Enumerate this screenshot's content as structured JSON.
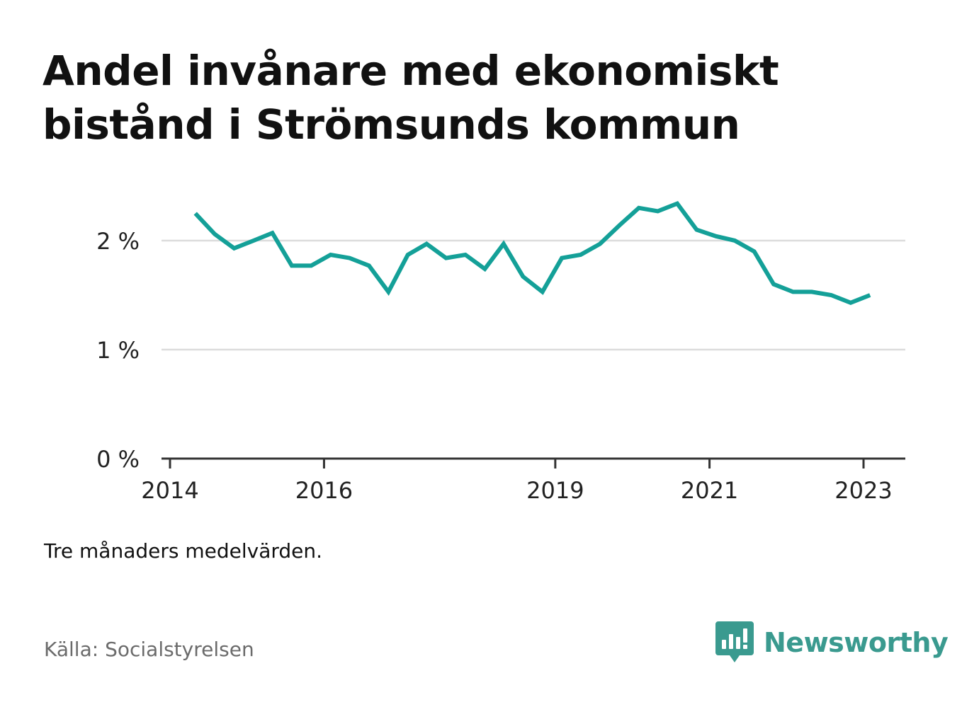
{
  "title": "Andel invånare med ekonomiskt bistånd i Strömsunds kommun",
  "note": "Tre månaders medelvärden.",
  "source": "Källa: Socialstyrelsen",
  "brand": {
    "name": "Newsworthy",
    "icon": "newsworthy-logo-icon",
    "color": "#3a9a8f"
  },
  "chart_data": {
    "type": "line",
    "title": "Andel invånare med ekonomiskt bistånd i Strömsunds kommun",
    "xlabel": "",
    "ylabel": "",
    "ylim": [
      0,
      2.5
    ],
    "xlim": [
      "2014-01-01",
      "2023-07-01"
    ],
    "grid": true,
    "line_color": "#14a098",
    "x_ticks": [
      {
        "label": "2014",
        "date": "2014-01-01"
      },
      {
        "label": "2016",
        "date": "2016-01-01"
      },
      {
        "label": "2019",
        "date": "2019-01-01"
      },
      {
        "label": "2021",
        "date": "2021-01-01"
      },
      {
        "label": "2023",
        "date": "2023-01-01"
      }
    ],
    "y_ticks": [
      {
        "label": "0 %",
        "value": 0
      },
      {
        "label": "1 %",
        "value": 1
      },
      {
        "label": "2 %",
        "value": 2
      }
    ],
    "series": [
      {
        "values": [
          {
            "x": "2014-05-01",
            "y": 2.25
          },
          {
            "x": "2014-08-01",
            "y": 2.06
          },
          {
            "x": "2014-11-01",
            "y": 1.93
          },
          {
            "x": "2015-02-01",
            "y": 2.0
          },
          {
            "x": "2015-05-01",
            "y": 2.07
          },
          {
            "x": "2015-08-01",
            "y": 1.77
          },
          {
            "x": "2015-11-01",
            "y": 1.77
          },
          {
            "x": "2016-02-01",
            "y": 1.87
          },
          {
            "x": "2016-05-01",
            "y": 1.84
          },
          {
            "x": "2016-08-01",
            "y": 1.77
          },
          {
            "x": "2016-11-01",
            "y": 1.53
          },
          {
            "x": "2017-02-01",
            "y": 1.87
          },
          {
            "x": "2017-05-01",
            "y": 1.97
          },
          {
            "x": "2017-08-01",
            "y": 1.84
          },
          {
            "x": "2017-11-01",
            "y": 1.87
          },
          {
            "x": "2018-02-01",
            "y": 1.74
          },
          {
            "x": "2018-05-01",
            "y": 1.97
          },
          {
            "x": "2018-08-01",
            "y": 1.67
          },
          {
            "x": "2018-11-01",
            "y": 1.53
          },
          {
            "x": "2019-02-01",
            "y": 1.84
          },
          {
            "x": "2019-05-01",
            "y": 1.87
          },
          {
            "x": "2019-08-01",
            "y": 1.97
          },
          {
            "x": "2019-11-01",
            "y": 2.14
          },
          {
            "x": "2020-02-01",
            "y": 2.3
          },
          {
            "x": "2020-05-01",
            "y": 2.27
          },
          {
            "x": "2020-08-01",
            "y": 2.34
          },
          {
            "x": "2020-11-01",
            "y": 2.1
          },
          {
            "x": "2021-02-01",
            "y": 2.04
          },
          {
            "x": "2021-05-01",
            "y": 2.0
          },
          {
            "x": "2021-08-01",
            "y": 1.9
          },
          {
            "x": "2021-11-01",
            "y": 1.6
          },
          {
            "x": "2022-02-01",
            "y": 1.53
          },
          {
            "x": "2022-05-01",
            "y": 1.53
          },
          {
            "x": "2022-08-01",
            "y": 1.5
          },
          {
            "x": "2022-11-01",
            "y": 1.43
          },
          {
            "x": "2023-02-01",
            "y": 1.5
          }
        ]
      }
    ]
  }
}
